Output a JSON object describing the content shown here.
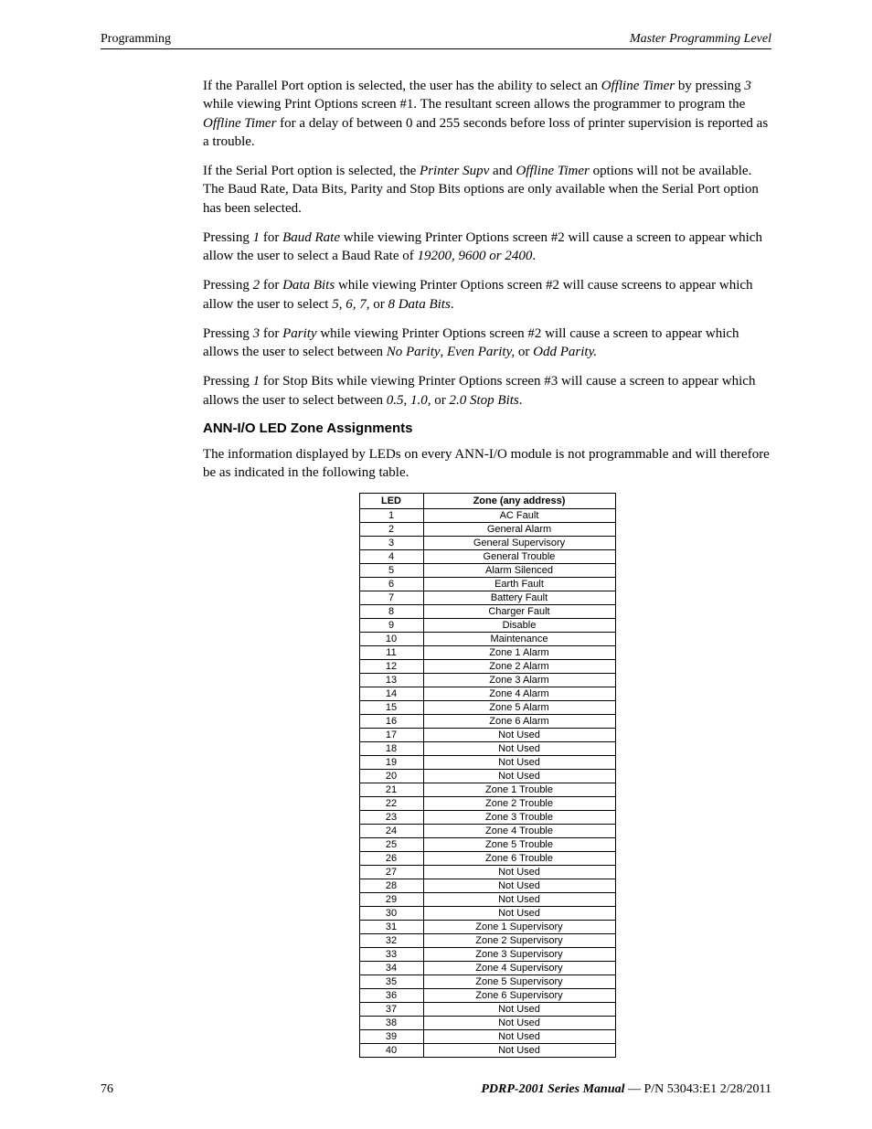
{
  "header": {
    "left": "Programming",
    "right": "Master Programming Level"
  },
  "paragraphs": {
    "p1": {
      "a": "If the Parallel Port option is selected, the user has the ability to select an ",
      "b": "Offline Timer",
      "c": " by pressing ",
      "d": "3",
      "e": " while viewing Print Options screen #1.  The resultant screen allows the programmer to program the ",
      "f": "Offline Timer",
      "g": " for a delay of between 0 and 255 seconds before loss of printer supervision is reported as a trouble."
    },
    "p2": {
      "a": "If the Serial Port option is selected, the ",
      "b": "Printer Supv",
      "c": " and ",
      "d": "Offline Timer",
      "e": " options will not be available. The Baud Rate, Data Bits, Parity and Stop Bits options are only available when the Serial Port option has been selected."
    },
    "p3": {
      "a": "Pressing ",
      "b": "1",
      "c": " for ",
      "d": "Baud Rate",
      "e": " while viewing Printer Options screen #2 will cause a screen to appear which allow the user to select a Baud Rate of ",
      "f": "19200, 9600 or 2400",
      "g": "."
    },
    "p4": {
      "a": "Pressing ",
      "b": "2",
      "c": " for ",
      "d": "Data Bits",
      "e": " while viewing Printer Options screen #2 will cause screens to appear which allow the user to select ",
      "f": "5, 6, 7,",
      "g": " or ",
      "h": "8 Data Bits",
      "i": "."
    },
    "p5": {
      "a": "Pressing ",
      "b": "3",
      "c": " for ",
      "d": "Parity",
      "e": " while viewing Printer Options screen #2 will cause a screen to appear which allows the user to select between ",
      "f": "No Parity",
      "g": ", ",
      "h": "Even Parity,",
      "i": " or ",
      "j": "Odd Parity."
    },
    "p6": {
      "a": "Pressing ",
      "b": "1",
      "c": " for Stop Bits while viewing Printer Options screen #3 will cause a screen to appear which allows the user to select between ",
      "d": "0.5",
      "e": ", ",
      "f": "1.0,",
      "g": " or ",
      "h": "2.0 Stop Bits",
      "i": "."
    }
  },
  "section_heading": "ANN-I/O LED Zone Assignments",
  "section_intro": "The information displayed by LEDs on every ANN-I/O module is not programmable and will therefore be as indicated in the following table.",
  "table": {
    "columns": [
      "LED",
      "Zone (any address)"
    ],
    "rows": [
      [
        "1",
        "AC Fault"
      ],
      [
        "2",
        "General Alarm"
      ],
      [
        "3",
        "General Supervisory"
      ],
      [
        "4",
        "General Trouble"
      ],
      [
        "5",
        "Alarm Silenced"
      ],
      [
        "6",
        "Earth Fault"
      ],
      [
        "7",
        "Battery Fault"
      ],
      [
        "8",
        "Charger Fault"
      ],
      [
        "9",
        "Disable"
      ],
      [
        "10",
        "Maintenance"
      ],
      [
        "11",
        "Zone 1 Alarm"
      ],
      [
        "12",
        "Zone 2 Alarm"
      ],
      [
        "13",
        "Zone 3 Alarm"
      ],
      [
        "14",
        "Zone 4 Alarm"
      ],
      [
        "15",
        "Zone 5 Alarm"
      ],
      [
        "16",
        "Zone 6 Alarm"
      ],
      [
        "17",
        "Not Used"
      ],
      [
        "18",
        "Not Used"
      ],
      [
        "19",
        "Not Used"
      ],
      [
        "20",
        "Not Used"
      ],
      [
        "21",
        "Zone 1 Trouble"
      ],
      [
        "22",
        "Zone 2 Trouble"
      ],
      [
        "23",
        "Zone 3 Trouble"
      ],
      [
        "24",
        "Zone 4 Trouble"
      ],
      [
        "25",
        "Zone 5 Trouble"
      ],
      [
        "26",
        "Zone 6 Trouble"
      ],
      [
        "27",
        "Not Used"
      ],
      [
        "28",
        "Not Used"
      ],
      [
        "29",
        "Not Used"
      ],
      [
        "30",
        "Not Used"
      ],
      [
        "31",
        "Zone 1 Supervisory"
      ],
      [
        "32",
        "Zone 2 Supervisory"
      ],
      [
        "33",
        "Zone 3 Supervisory"
      ],
      [
        "34",
        "Zone 4 Supervisory"
      ],
      [
        "35",
        "Zone 5 Supervisory"
      ],
      [
        "36",
        "Zone 6 Supervisory"
      ],
      [
        "37",
        "Not Used"
      ],
      [
        "38",
        "Not Used"
      ],
      [
        "39",
        "Not Used"
      ],
      [
        "40",
        "Not Used"
      ]
    ]
  },
  "footer": {
    "page_number": "76",
    "manual": "PDRP-2001 Series Manual",
    "sep": " — ",
    "pn": "P/N 53043:E1  2/28/2011"
  }
}
